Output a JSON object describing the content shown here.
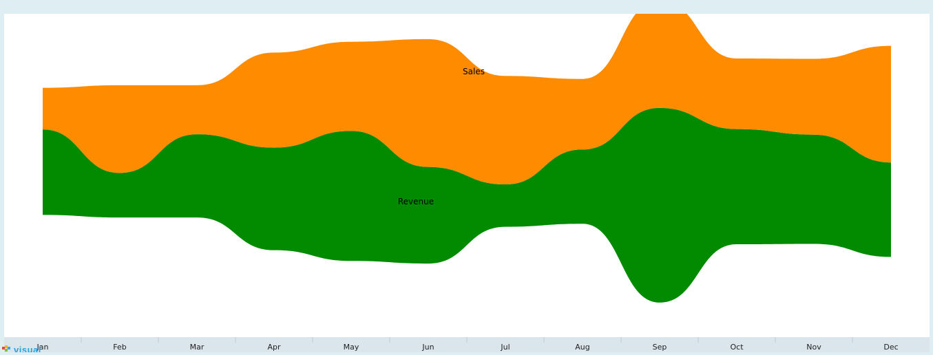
{
  "chart_data": {
    "type": "area",
    "subtype": "streamgraph",
    "title": "",
    "xlabel": "",
    "ylabel": "",
    "categories": [
      "Jan",
      "Feb",
      "Mar",
      "Apr",
      "May",
      "Jun",
      "Jul",
      "Aug",
      "Sep",
      "Oct",
      "Nov",
      "Dec"
    ],
    "series": [
      {
        "name": "Revenue",
        "color": "#028b00",
        "values": [
          115,
          60,
          112,
          138,
          175,
          130,
          57,
          100,
          262,
          155,
          147,
          127
        ]
      },
      {
        "name": "Sales",
        "color": "#ff8c00",
        "values": [
          56,
          118,
          66,
          128,
          120,
          172,
          146,
          95,
          145,
          95,
          102,
          157
        ]
      }
    ],
    "label_positions": {
      "Revenue": "center-left below middle",
      "Sales": "top center"
    },
    "grid": false,
    "legend": "none (inline series labels)",
    "colors": {
      "background": "#dfeef3",
      "plot_background": "#ffffff",
      "axis_strip": "#dbe5ec"
    }
  },
  "branding": {
    "logo_icon": "rainbow-cube-icon",
    "logo_text": "visual"
  }
}
